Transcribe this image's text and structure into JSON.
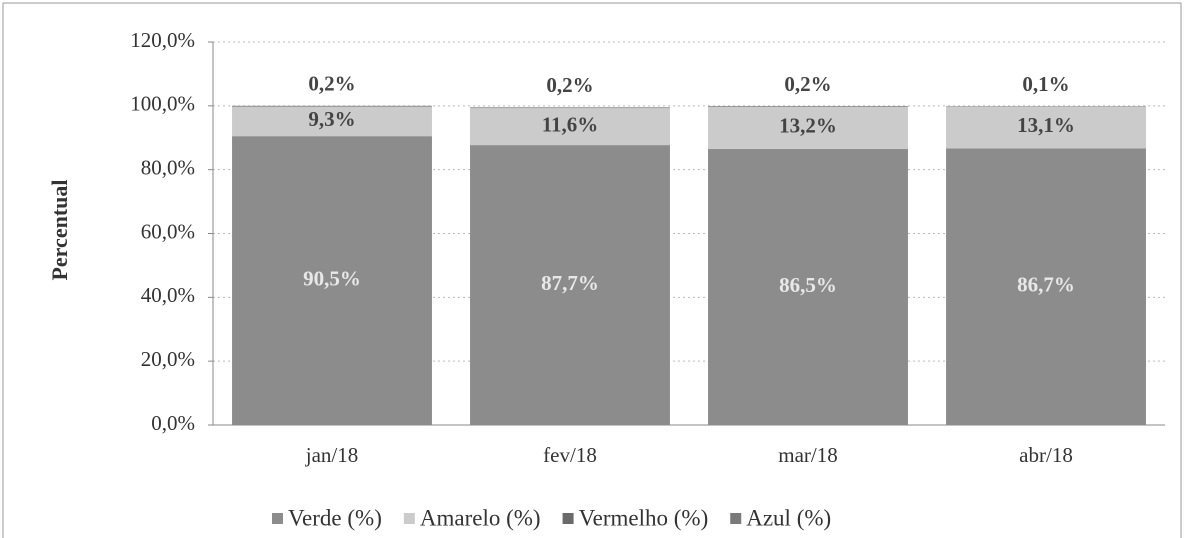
{
  "chart_data": {
    "type": "stacked_bar",
    "y_label": "Percentual",
    "categories": [
      "jan/18",
      "fev/18",
      "mar/18",
      "abr/18"
    ],
    "series": [
      {
        "name": "Verde (%)",
        "color": "#8c8c8c",
        "values": [
          90.5,
          87.7,
          86.5,
          86.7
        ],
        "value_labels": [
          "90,5%",
          "87,7%",
          "86,5%",
          "86,7%"
        ]
      },
      {
        "name": "Amarelo (%)",
        "color": "#cbcbcb",
        "values": [
          9.3,
          11.6,
          13.2,
          13.1
        ],
        "value_labels": [
          "9,3%",
          "11,6%",
          "13,2%",
          "13,1%"
        ]
      },
      {
        "name": "Vermelho (%)",
        "color": "#6a6a6a",
        "values": [
          0.2,
          0.2,
          0.2,
          0.1
        ],
        "value_labels": [
          "0,2%",
          "0,2%",
          "0,2%",
          "0,1%"
        ]
      },
      {
        "name": "Azul (%)",
        "color": "#7a7a7a",
        "values": [
          null,
          null,
          null,
          null
        ]
      }
    ],
    "ylim": [
      0,
      120
    ],
    "yticks": [
      {
        "value": 0,
        "label": "0,0%"
      },
      {
        "value": 20,
        "label": "20,0%"
      },
      {
        "value": 40,
        "label": "40,0%"
      },
      {
        "value": 60,
        "label": "60,0%"
      },
      {
        "value": 80,
        "label": "80,0%"
      },
      {
        "value": 100,
        "label": "100,0%"
      },
      {
        "value": 120,
        "label": "120,0%"
      }
    ],
    "grid": true
  }
}
